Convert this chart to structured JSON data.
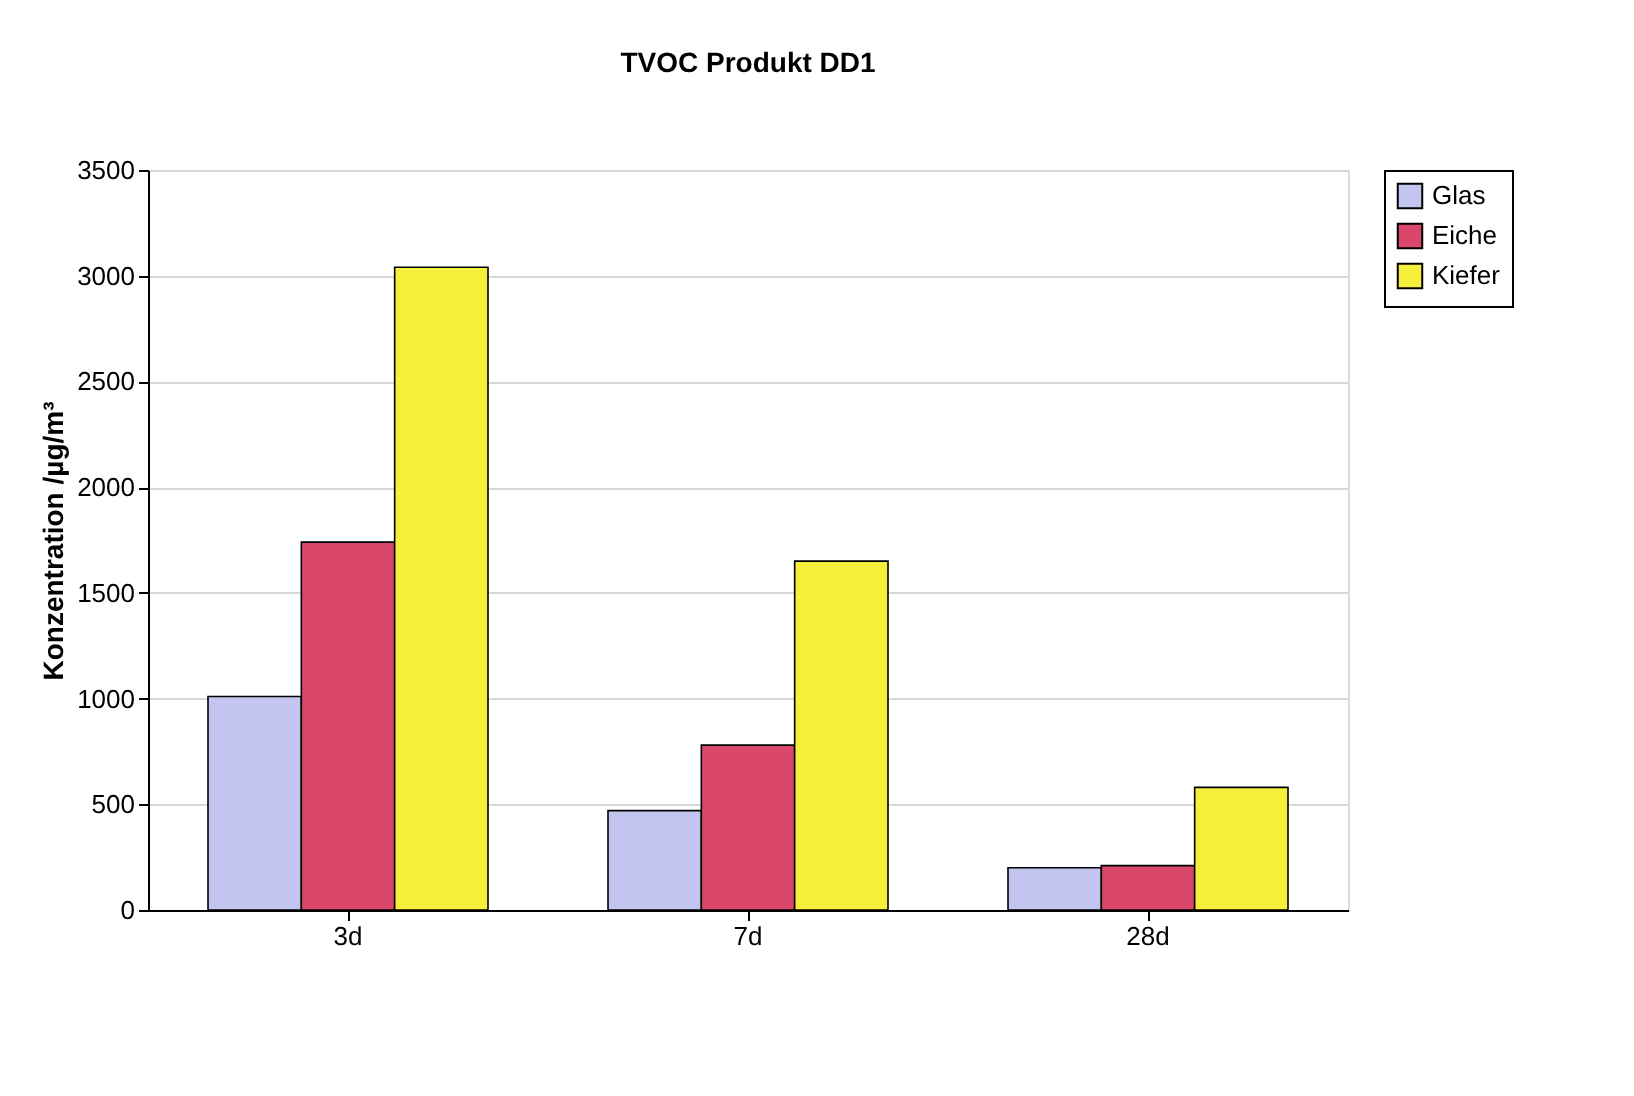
{
  "chart_data": {
    "type": "bar",
    "title": "TVOC Produkt DD1",
    "ylabel": "Konzentration /µg/m³",
    "categories": [
      "3d",
      "7d",
      "28d"
    ],
    "series": [
      {
        "name": "Glas",
        "color": "#c4c4f0",
        "values": [
          1010,
          470,
          200
        ]
      },
      {
        "name": "Eiche",
        "color": "#d9476b",
        "values": [
          1740,
          780,
          210
        ]
      },
      {
        "name": "Kiefer",
        "color": "#f5ee3a",
        "values": [
          3040,
          1650,
          580
        ]
      }
    ],
    "ylim": [
      0,
      3500
    ],
    "yticks": [
      0,
      500,
      1000,
      1500,
      2000,
      2500,
      3000,
      3500
    ],
    "grid": "y",
    "legend": "right"
  }
}
